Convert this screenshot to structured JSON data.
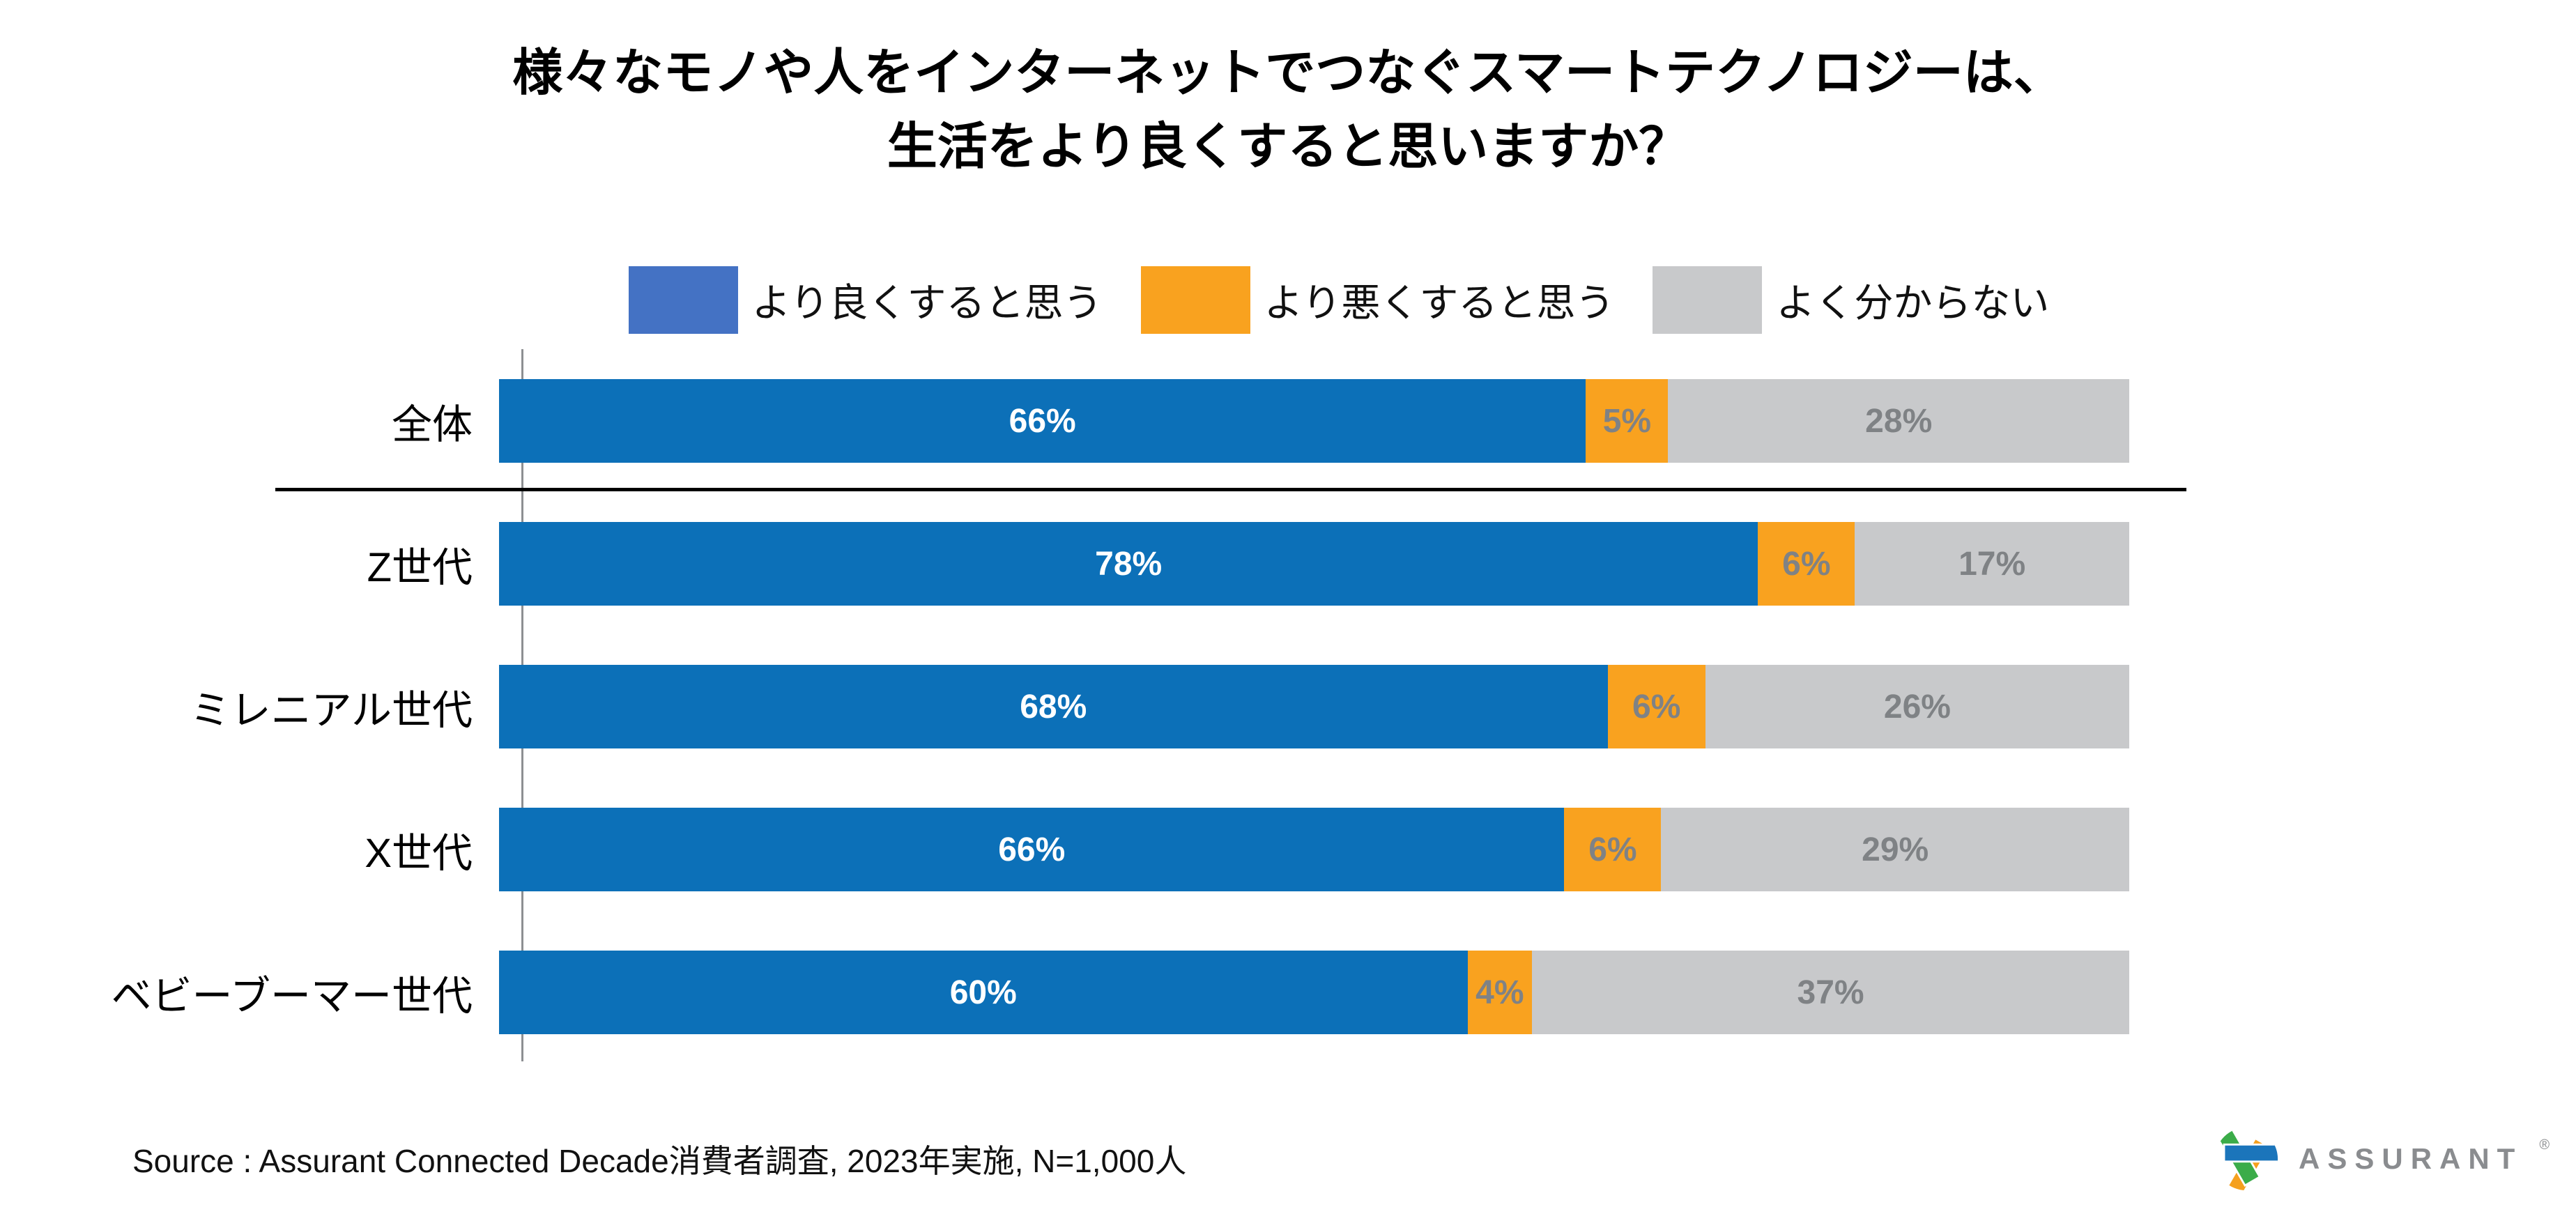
{
  "title": {
    "line1": "様々なモノや人をインターネットでつなぐスマートテクノロジーは、",
    "line2": "生活をより良くすると思いますか？"
  },
  "legend": {
    "items": [
      {
        "label": "より良くすると思う",
        "color": "#4472C4"
      },
      {
        "label": "より悪くすると思う",
        "color": "#F9A21F"
      },
      {
        "label": "よく分からない",
        "color": "#C8C9CB"
      }
    ]
  },
  "chart_data": {
    "type": "bar",
    "orientation": "horizontal",
    "stacked": true,
    "normalized_to_100": true,
    "title": "様々なモノや人をインターネットでつなぐスマートテクノロジーは、生活をより良くすると思いますか？",
    "categories": [
      "全体",
      "Z世代",
      "ミレニアル世代",
      "X世代",
      "ベビーブーマー世代"
    ],
    "series": [
      {
        "name": "より良くすると思う",
        "key": "better",
        "color": "#0C70B8",
        "label_color": "#FFFFFF",
        "values": [
          66,
          78,
          68,
          66,
          60
        ]
      },
      {
        "name": "より悪くすると思う",
        "key": "worse",
        "color": "#F9A21F",
        "label_color": "#7F8285",
        "values": [
          5,
          6,
          6,
          6,
          4
        ]
      },
      {
        "name": "よく分からない",
        "key": "unknown",
        "color": "#C8C9CB",
        "label_color": "#7F8285",
        "values": [
          28,
          17,
          26,
          29,
          37
        ]
      }
    ],
    "value_suffix": "%",
    "xlim": [
      0,
      100
    ],
    "grid": false,
    "legend_position": "top",
    "separator_after_category": "全体"
  },
  "source": "Source : Assurant Connected Decade消費者調査, 2023年実施, N=1,000人",
  "logo": {
    "text": "ASSURANT",
    "registered": "®",
    "text_color": "#8a8c8f",
    "emblem_colors": {
      "orange": "#F5A01E",
      "green": "#3BAC49",
      "blue": "#1B75BB"
    }
  }
}
